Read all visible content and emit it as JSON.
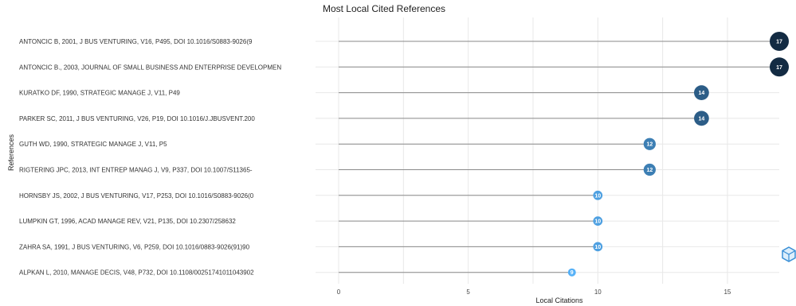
{
  "chart_data": {
    "type": "lollipop",
    "title": "Most Local Cited References",
    "xlabel": "Local Citations",
    "ylabel": "References",
    "xlim": [
      0,
      17
    ],
    "xticks": [
      0,
      5,
      10,
      15
    ],
    "grid": true,
    "legend": "none",
    "colors": {
      "low": "#56b1f7",
      "high": "#132b43"
    },
    "categories": [
      "ANTONCIC B, 2001, J BUS VENTURING, V16, P495, DOI 10.1016/S0883-9026(9",
      "ANTONCIC B., 2003, JOURNAL OF SMALL BUSINESS AND ENTERPRISE DEVELOPMEN",
      "KURATKO DF, 1990, STRATEGIC MANAGE J, V11, P49",
      "PARKER SC, 2011, J BUS VENTURING, V26, P19, DOI 10.1016/J.JBUSVENT.200",
      "GUTH WD, 1990, STRATEGIC MANAGE J, V11, P5",
      "RIGTERING JPC, 2013, INT ENTREP MANAG J, V9, P337, DOI 10.1007/S11365-",
      "HORNSBY JS, 2002, J BUS VENTURING, V17, P253, DOI 10.1016/S0883-9026(0",
      "LUMPKIN GT, 1996, ACAD MANAGE REV, V21, P135, DOI 10.2307/258632",
      "ZAHRA SA, 1991, J BUS VENTURING, V6, P259, DOI 10.1016/0883-9026(91)90",
      "ALPKAN L, 2010, MANAGE DECIS, V48, P732, DOI 10.1108/00251741011043902"
    ],
    "values": [
      17,
      17,
      14,
      14,
      12,
      12,
      10,
      10,
      10,
      9
    ]
  }
}
